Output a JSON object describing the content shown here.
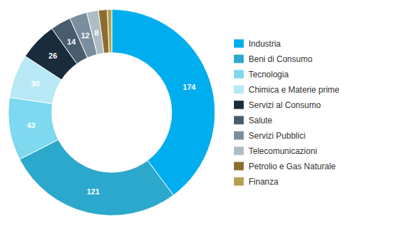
{
  "chart_data": {
    "type": "pie",
    "categories": [
      "Industria",
      "Beni di Consumo",
      "Tecnologia",
      "Chimica e Materie prime",
      "Servizi al Consumo",
      "Salute",
      "Servizi Pubblici",
      "Telecomunicazioni",
      "Petrolio e Gas Naturale",
      "Finanza"
    ],
    "values": [
      174,
      121,
      43,
      30,
      26,
      14,
      12,
      8,
      6,
      3
    ],
    "colors": [
      "#00AEEF",
      "#2BA8CC",
      "#7DD8F0",
      "#B8E8F5",
      "#1A2B3C",
      "#485C6E",
      "#7B8E9E",
      "#AEBCC5",
      "#8B6E2E",
      "#B5A050"
    ],
    "data_labels": true,
    "legend": "right"
  }
}
